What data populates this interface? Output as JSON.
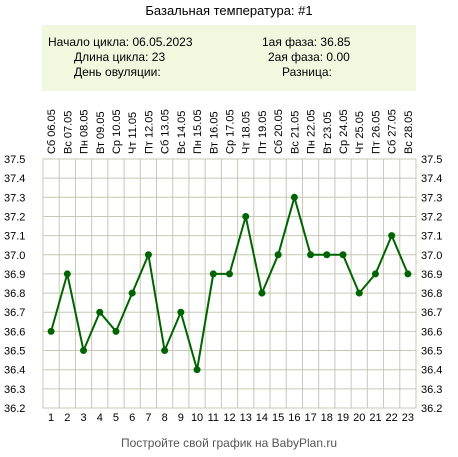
{
  "chart_data": {
    "type": "line",
    "title": "Базальная температура: #1",
    "x": [
      1,
      2,
      3,
      4,
      5,
      6,
      7,
      8,
      9,
      10,
      11,
      12,
      13,
      14,
      15,
      16,
      17,
      18,
      19,
      20,
      21,
      22,
      23
    ],
    "dates": [
      "Сб 06.05",
      "Вс 07.05",
      "Пн 08.05",
      "Вт 09.05",
      "Ср 10.05",
      "Чт 11.05",
      "Пт 12.05",
      "Сб 13.05",
      "Вс 14.05",
      "Пн 15.05",
      "Вт 16.05",
      "Ср 17.05",
      "Чт 18.05",
      "Пт 19.05",
      "Сб 20.05",
      "Вс 21.05",
      "Пн 22.05",
      "Вт 23.05",
      "Ср 24.05",
      "Чт 25.05",
      "Пт 26.05",
      "Сб 27.05",
      "Вс 28.05"
    ],
    "values": [
      36.6,
      36.9,
      36.5,
      36.7,
      36.6,
      36.8,
      37.0,
      36.5,
      36.7,
      36.4,
      36.9,
      36.9,
      37.2,
      36.8,
      37.0,
      37.3,
      37.0,
      37.0,
      37.0,
      36.8,
      36.9,
      37.1,
      36.9
    ],
    "yticks": [
      "37.5",
      "37.4",
      "37.3",
      "37.2",
      "37.1",
      "37.0",
      "36.9",
      "36.8",
      "36.7",
      "36.6",
      "36.5",
      "36.4",
      "36.3",
      "36.2"
    ],
    "ylim": [
      36.2,
      37.5
    ],
    "grid": true,
    "line_color": "#006400",
    "grid_color": "#c8c8b4"
  },
  "info": {
    "cycle_start": "Начало цикла: 06.05.2023",
    "cycle_length": "Длина цикла: 23",
    "ovulation_day": "День овуляции:",
    "phase1": "1ая фаза: 36.85",
    "phase2": "2ая фаза: 0.00",
    "difference": "Разница:"
  },
  "footer": "Постройте свой график на BabyPlan.ru"
}
